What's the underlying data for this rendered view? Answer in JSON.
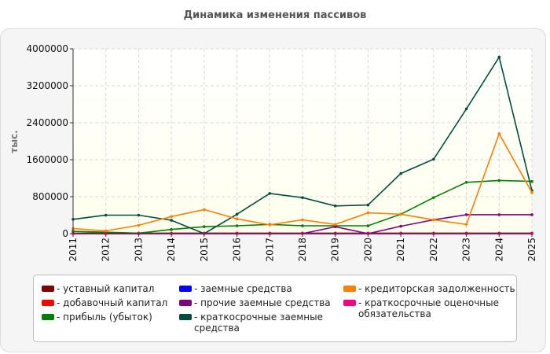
{
  "title": "Динамика изменения пассивов",
  "chart_data": {
    "type": "line",
    "ylabel": "тыс.",
    "xlabel": "",
    "ylim": [
      0,
      4000000
    ],
    "yticks": [
      "0",
      "800000",
      "1600000",
      "2400000",
      "3200000",
      "4000000"
    ],
    "categories": [
      "2011",
      "2012",
      "2013",
      "2014",
      "2015",
      "2016",
      "2017",
      "2018",
      "2019",
      "2020",
      "2021",
      "2022",
      "2023",
      "2024",
      "2025"
    ],
    "grid": true,
    "legend_position": "bottom",
    "series": [
      {
        "name": "уставный капитал",
        "color": "#800000",
        "values": [
          10000,
          10000,
          10000,
          10000,
          10000,
          10000,
          10000,
          10000,
          10000,
          10000,
          10000,
          10000,
          10000,
          10000,
          10000
        ]
      },
      {
        "name": "добавочный капитал",
        "color": "#ff0000",
        "values": [
          0,
          0,
          0,
          0,
          0,
          0,
          0,
          0,
          0,
          0,
          0,
          0,
          0,
          0,
          0
        ]
      },
      {
        "name": "прибыль (убыток)",
        "color": "#008000",
        "values": [
          50000,
          30000,
          10000,
          90000,
          150000,
          170000,
          200000,
          170000,
          170000,
          170000,
          420000,
          780000,
          1110000,
          1150000,
          1130000
        ]
      },
      {
        "name": "заемные средства",
        "color": "#0000ff",
        "values": [
          0,
          0,
          0,
          0,
          0,
          0,
          0,
          0,
          0,
          0,
          0,
          0,
          0,
          0,
          0
        ]
      },
      {
        "name": "прочие заемные средства",
        "color": "#800080",
        "values": [
          0,
          0,
          0,
          0,
          0,
          0,
          0,
          0,
          150000,
          0,
          160000,
          300000,
          410000,
          410000,
          410000
        ]
      },
      {
        "name": "краткосрочные заемные\nсредства",
        "color": "#004d40",
        "values": [
          310000,
          400000,
          400000,
          290000,
          0,
          420000,
          870000,
          780000,
          600000,
          620000,
          1300000,
          1610000,
          2700000,
          3820000,
          930000
        ]
      },
      {
        "name": "кредиторская задолженность",
        "color": "#ff8000",
        "values": [
          110000,
          60000,
          180000,
          370000,
          520000,
          320000,
          190000,
          300000,
          200000,
          450000,
          420000,
          300000,
          200000,
          2160000,
          890000
        ]
      },
      {
        "name": "краткосрочные оценочные\nобязательства",
        "color": "#ff0080",
        "values": [
          0,
          0,
          0,
          0,
          0,
          0,
          0,
          0,
          0,
          0,
          0,
          0,
          0,
          0,
          0
        ]
      }
    ]
  }
}
